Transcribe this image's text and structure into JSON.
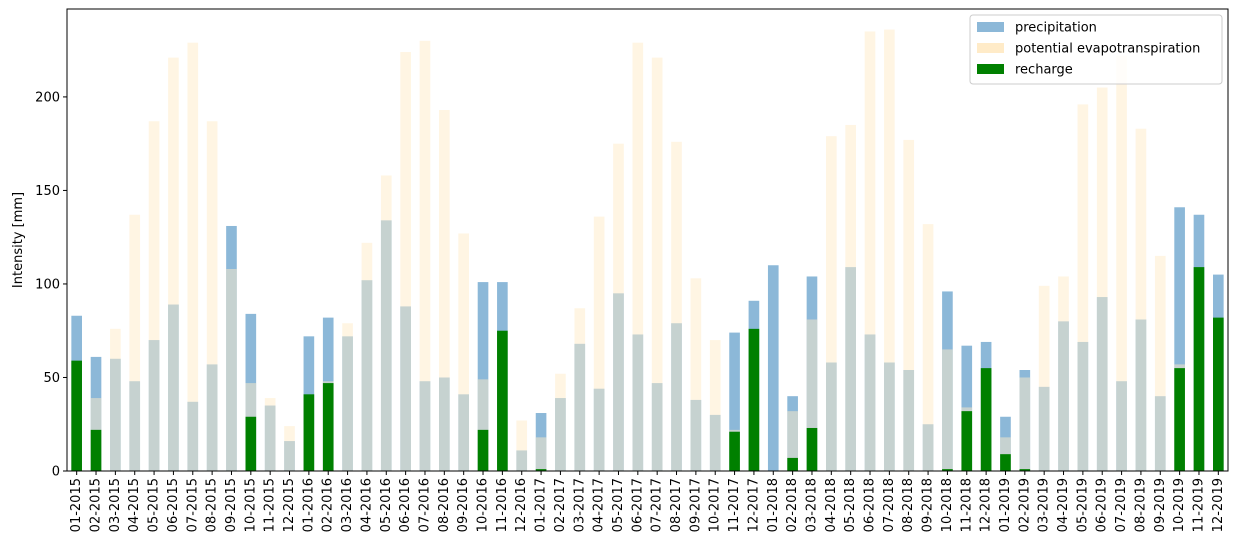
{
  "chart_data": {
    "type": "bar",
    "ylabel": "Intensity [mm]",
    "ylim": [
      0,
      247
    ],
    "yticks": [
      0,
      50,
      100,
      150,
      200
    ],
    "legend_position": "top-right",
    "grid": false,
    "categories": [
      "01-2015",
      "02-2015",
      "03-2015",
      "04-2015",
      "05-2015",
      "06-2015",
      "07-2015",
      "08-2015",
      "09-2015",
      "10-2015",
      "11-2015",
      "12-2015",
      "01-2016",
      "02-2016",
      "03-2016",
      "04-2016",
      "05-2016",
      "06-2016",
      "07-2016",
      "08-2016",
      "09-2016",
      "10-2016",
      "11-2016",
      "12-2016",
      "01-2017",
      "02-2017",
      "03-2017",
      "04-2017",
      "05-2017",
      "06-2017",
      "07-2017",
      "08-2017",
      "09-2017",
      "10-2017",
      "11-2017",
      "12-2017",
      "01-2018",
      "02-2018",
      "03-2018",
      "04-2018",
      "05-2018",
      "06-2018",
      "07-2018",
      "08-2018",
      "09-2018",
      "10-2018",
      "11-2018",
      "12-2018",
      "01-2019",
      "02-2019",
      "03-2019",
      "04-2019",
      "05-2019",
      "06-2019",
      "07-2019",
      "08-2019",
      "09-2019",
      "10-2019",
      "11-2019",
      "12-2019"
    ],
    "series": [
      {
        "name": "precipitation",
        "color": "#8cb8d8",
        "values": [
          83,
          61,
          60,
          48,
          70,
          89,
          37,
          57,
          131,
          84,
          35,
          16,
          72,
          82,
          72,
          102,
          134,
          88,
          48,
          50,
          41,
          101,
          101,
          11,
          31,
          39,
          68,
          44,
          95,
          73,
          47,
          79,
          38,
          30,
          74,
          91,
          110,
          40,
          104,
          58,
          109,
          73,
          58,
          54,
          25,
          96,
          67,
          69,
          29,
          54,
          45,
          80,
          69,
          93,
          48,
          81,
          40,
          141,
          137,
          105
        ]
      },
      {
        "name": "potential evapotranspiration",
        "color": "#ffebc8",
        "values": [
          34,
          39,
          76,
          137,
          187,
          221,
          229,
          187,
          108,
          47,
          39,
          24,
          25,
          48,
          79,
          122,
          158,
          224,
          230,
          193,
          127,
          49,
          26,
          27,
          18,
          52,
          87,
          136,
          175,
          229,
          221,
          176,
          103,
          70,
          22,
          31,
          0,
          32,
          81,
          179,
          185,
          235,
          236,
          177,
          132,
          65,
          34,
          31,
          18,
          50,
          99,
          104,
          196,
          205,
          222,
          183,
          115,
          57,
          42,
          45
        ]
      },
      {
        "name": "recharge",
        "color": "#008000",
        "values": [
          59,
          22,
          0,
          0,
          0,
          0,
          0,
          0,
          0,
          29,
          0,
          0,
          41,
          47,
          0,
          0,
          0,
          0,
          0,
          0,
          0,
          22,
          75,
          0,
          1,
          0,
          0,
          0,
          0,
          0,
          0,
          0,
          0,
          0,
          21,
          76,
          0,
          7,
          23,
          0,
          0,
          0,
          0,
          0,
          0,
          1,
          32,
          55,
          9,
          1,
          0,
          0,
          0,
          0,
          0,
          0,
          0,
          55,
          109,
          82
        ]
      }
    ]
  }
}
